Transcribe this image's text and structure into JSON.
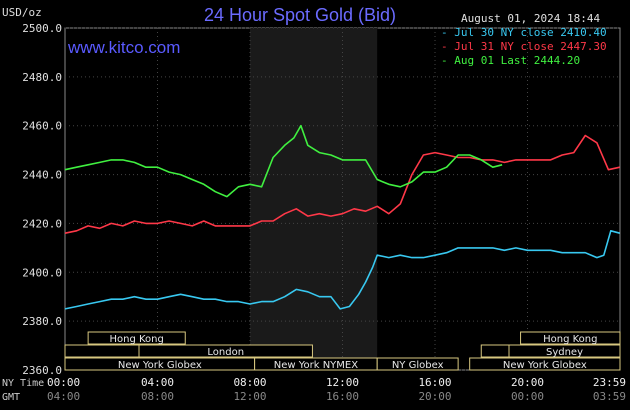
{
  "header": {
    "title": "24 Hour Spot Gold (Bid)",
    "site": "www.kitco.com",
    "unit": "USD/oz",
    "timestamp": "August 01, 2024 18:44"
  },
  "legend": [
    {
      "label": "- Jul 30 NY close 2410.40",
      "color": "#38c8f0"
    },
    {
      "label": "- Jul 31 NY close 2447.30",
      "color": "#ff3848"
    },
    {
      "label": "- Aug 01 Last 2444.20",
      "color": "#40f040"
    }
  ],
  "footer": {
    "ny_time_label": "NY Time",
    "gmt_label": "GMT"
  },
  "chart_data": {
    "type": "line",
    "title": "24 Hour Spot Gold (Bid)",
    "ylabel": "USD/oz",
    "ylim": [
      2360,
      2500
    ],
    "y_ticks": [
      "2360.0",
      "2380.0",
      "2400.0",
      "2420.0",
      "2440.0",
      "2460.0",
      "2480.0",
      "2500.0"
    ],
    "x_ticks_ny": [
      "00:00",
      "04:00",
      "08:00",
      "12:00",
      "16:00",
      "20:00",
      "23:59"
    ],
    "x_ticks_gmt": [
      "04:00",
      "08:00",
      "12:00",
      "16:00",
      "20:00",
      "00:00",
      "03:59"
    ],
    "x_range_hours": [
      0,
      24
    ],
    "grid": true,
    "highlight_hours": [
      8,
      13.5
    ],
    "sessions": [
      {
        "label": "Hong Kong",
        "start": 1,
        "end": 5.2,
        "row": 0
      },
      {
        "label": "Hong Kong",
        "start": 19.7,
        "end": 24,
        "row": 0
      },
      {
        "label": "",
        "start": 0,
        "end": 3.2,
        "row": 1
      },
      {
        "label": "London",
        "start": 3.2,
        "end": 10.7,
        "row": 1
      },
      {
        "label": "",
        "start": 18,
        "end": 19.2,
        "row": 1
      },
      {
        "label": "Sydney",
        "start": 19.2,
        "end": 24,
        "row": 1
      },
      {
        "label": "New York Globex",
        "start": 0,
        "end": 8.2,
        "row": 2
      },
      {
        "label": "New York NYMEX",
        "start": 8.2,
        "end": 13.5,
        "row": 2
      },
      {
        "label": "New York Globex",
        "start": 17.5,
        "end": 24,
        "row": 2
      },
      {
        "label": "NY Globex",
        "start": 13.5,
        "end": 17,
        "row": 2
      }
    ],
    "series": [
      {
        "name": "Jul 30 NY close 2410.40",
        "color": "#38c8f0",
        "x": [
          0,
          0.5,
          1,
          1.5,
          2,
          2.5,
          3,
          3.5,
          4,
          4.5,
          5,
          5.5,
          6,
          6.5,
          7,
          7.5,
          8,
          8.5,
          9,
          9.5,
          10,
          10.5,
          11,
          11.5,
          11.9,
          12.3,
          12.7,
          13,
          13.3,
          13.5,
          14,
          14.5,
          15,
          15.5,
          16,
          16.5,
          17,
          17.5,
          18,
          18.5,
          19,
          19.5,
          20,
          20.5,
          21,
          21.5,
          22,
          22.5,
          23,
          23.3,
          23.6,
          23.99
        ],
        "y": [
          2385,
          2386,
          2387,
          2388,
          2389,
          2389,
          2390,
          2389,
          2389,
          2390,
          2391,
          2390,
          2389,
          2389,
          2388,
          2388,
          2387,
          2388,
          2388,
          2390,
          2393,
          2392,
          2390,
          2390,
          2385,
          2386,
          2391,
          2396,
          2402,
          2407,
          2406,
          2407,
          2406,
          2406,
          2407,
          2408,
          2410,
          2410,
          2410,
          2410,
          2409,
          2410,
          2409,
          2409,
          2409,
          2408,
          2408,
          2408,
          2406,
          2407,
          2417,
          2416
        ]
      },
      {
        "name": "Jul 31 NY close 2447.30",
        "color": "#ff3848",
        "x": [
          0,
          0.5,
          1,
          1.5,
          2,
          2.5,
          3,
          3.5,
          4,
          4.5,
          5,
          5.5,
          6,
          6.5,
          7,
          7.5,
          8,
          8.5,
          9,
          9.5,
          10,
          10.5,
          11,
          11.5,
          12,
          12.5,
          13,
          13.5,
          14,
          14.5,
          15,
          15.5,
          16,
          16.5,
          17,
          17.5,
          18,
          18.5,
          19,
          19.5,
          20,
          20.5,
          21,
          21.5,
          22,
          22.5,
          23,
          23.5,
          23.99
        ],
        "y": [
          2416,
          2417,
          2419,
          2418,
          2420,
          2419,
          2421,
          2420,
          2420,
          2421,
          2420,
          2419,
          2421,
          2419,
          2419,
          2419,
          2419,
          2421,
          2421,
          2424,
          2426,
          2423,
          2424,
          2423,
          2424,
          2426,
          2425,
          2427,
          2424,
          2428,
          2440,
          2448,
          2449,
          2448,
          2447,
          2447,
          2446,
          2446,
          2445,
          2446,
          2446,
          2446,
          2446,
          2448,
          2449,
          2456,
          2453,
          2442,
          2443
        ]
      },
      {
        "name": "Aug 01 Last 2444.20",
        "color": "#40f040",
        "x": [
          0,
          0.5,
          1,
          1.5,
          2,
          2.5,
          3,
          3.5,
          4,
          4.5,
          5,
          5.5,
          6,
          6.5,
          7,
          7.5,
          8,
          8.5,
          9,
          9.5,
          9.9,
          10.2,
          10.5,
          11,
          11.5,
          12,
          12.5,
          13,
          13.5,
          14,
          14.5,
          15,
          15.5,
          16,
          16.5,
          17,
          17.5,
          18,
          18.5,
          18.9
        ],
        "y": [
          2442,
          2443,
          2444,
          2445,
          2446,
          2446,
          2445,
          2443,
          2443,
          2441,
          2440,
          2438,
          2436,
          2433,
          2431,
          2435,
          2436,
          2435,
          2447,
          2452,
          2455,
          2460,
          2452,
          2449,
          2448,
          2446,
          2446,
          2446,
          2438,
          2436,
          2435,
          2437,
          2441,
          2441,
          2443,
          2448,
          2448,
          2446,
          2443,
          2444
        ]
      }
    ]
  }
}
